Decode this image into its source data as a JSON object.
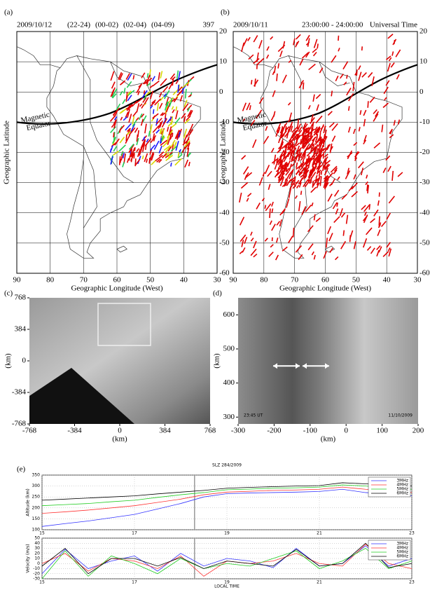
{
  "chart_data": [
    {
      "type": "map",
      "label": "(a)",
      "date": "2009/10/12",
      "legend": [
        {
          "name": "(22-24)",
          "color": "#d8d800"
        },
        {
          "name": "(00-02)",
          "color": "#1a1aff"
        },
        {
          "name": "(02-04)",
          "color": "#22cc55"
        },
        {
          "name": "(04-09)",
          "color": "#e00000"
        }
      ],
      "count": 397,
      "xlim": [
        90,
        30
      ],
      "ylim": [
        -60,
        20
      ],
      "xticks": [
        90,
        80,
        70,
        60,
        50,
        40,
        30
      ],
      "yticks": [
        20,
        10,
        0,
        -10,
        -20,
        -30,
        -40,
        -50,
        -60
      ],
      "xlabel": "Geographic Longitude (West)",
      "ylabel": "Geographic Latitude",
      "annotation": [
        "Magnetic",
        "Equator"
      ],
      "grid": true
    },
    {
      "type": "map",
      "label": "(b)",
      "date": "2009/10/11",
      "time": "23:00:00 - 24:00:00",
      "time_system": "Universal Time",
      "legend": [
        {
          "name": null,
          "color": "#e00000"
        }
      ],
      "xlim": [
        90,
        30
      ],
      "ylim": [
        -60,
        20
      ],
      "xticks": [
        90,
        80,
        70,
        60,
        50,
        40,
        30
      ],
      "yticks": [
        20,
        10,
        0,
        -10,
        -20,
        -30,
        -40,
        -50,
        -60
      ],
      "xlabel": "Geographic Longitude (West)",
      "ylabel": "Geographic Latitude",
      "annotation": [
        "Magnetic",
        "Equator"
      ],
      "grid": true
    },
    {
      "type": "image",
      "label": "(c)",
      "xlim": [
        -768,
        768
      ],
      "ylim": [
        -768,
        768
      ],
      "xticks": [
        -768,
        -384,
        0,
        384,
        768
      ],
      "yticks": [
        768,
        384,
        0,
        -384,
        -768
      ],
      "xlabel": "(km)",
      "ylabel": "(km)"
    },
    {
      "type": "image",
      "label": "(d)",
      "xlim": [
        -300,
        200
      ],
      "ylim": [
        280,
        650
      ],
      "xticks": [
        -300,
        -200,
        -100,
        0,
        100,
        200
      ],
      "yticks": [
        600,
        500,
        400,
        300
      ],
      "xlabel": "(km)",
      "ylabel": "(km)",
      "timestamp": "23:45 UT",
      "date": "11/10/2009"
    },
    {
      "type": "line",
      "label": "(e)",
      "title": "SLZ 284/2009",
      "ylabel": "Altitude (km)",
      "x": [
        15,
        15.5,
        16,
        16.5,
        17,
        17.5,
        18,
        18.5,
        19,
        19.5,
        20,
        20.5,
        21,
        21.5,
        22,
        22.5,
        23
      ],
      "series": [
        {
          "name": "3MHz",
          "color": "#3333ff",
          "values": [
            115,
            128,
            140,
            155,
            170,
            195,
            220,
            250,
            265,
            268,
            270,
            272,
            275,
            285,
            270,
            262,
            255
          ]
        },
        {
          "name": "4MHz",
          "color": "#ff3333",
          "values": [
            175,
            182,
            190,
            200,
            210,
            225,
            240,
            260,
            272,
            276,
            280,
            282,
            285,
            295,
            285,
            278,
            270
          ]
        },
        {
          "name": "5MHz",
          "color": "#22cc22",
          "values": [
            210,
            215,
            220,
            228,
            235,
            248,
            260,
            270,
            283,
            286,
            290,
            292,
            295,
            305,
            300,
            292,
            285
          ]
        },
        {
          "name": "6MHz",
          "color": "#000000",
          "values": [
            235,
            240,
            245,
            250,
            255,
            264,
            272,
            280,
            290,
            294,
            297,
            300,
            302,
            315,
            310,
            305,
            300
          ]
        }
      ],
      "xlim": [
        15,
        23
      ],
      "ylim": [
        100,
        350
      ],
      "xticks": [
        15,
        17,
        19,
        21,
        23
      ],
      "yticks": [
        100,
        150,
        200,
        250,
        300,
        350
      ],
      "grid": true,
      "vline": 18.3
    },
    {
      "type": "line",
      "ylabel": "Velocity (m/s)",
      "xlabel": "LOCAL TIME",
      "x": [
        15,
        15.5,
        16,
        16.5,
        17,
        17.5,
        18,
        18.5,
        19,
        19.5,
        20,
        20.5,
        21,
        21.5,
        22,
        22.5,
        23
      ],
      "series": [
        {
          "name": "3MHz",
          "color": "#3333ff",
          "values": [
            -20,
            28,
            -10,
            5,
            15,
            -15,
            20,
            -5,
            10,
            5,
            -8,
            30,
            -5,
            0,
            35,
            -5,
            10
          ]
        },
        {
          "name": "4MHz",
          "color": "#ff3333",
          "values": [
            0,
            20,
            -15,
            10,
            5,
            -10,
            15,
            -25,
            5,
            0,
            5,
            20,
            0,
            -5,
            38,
            0,
            -10
          ]
        },
        {
          "name": "5MHz",
          "color": "#22cc22",
          "values": [
            -30,
            25,
            -25,
            15,
            0,
            -20,
            10,
            -10,
            0,
            -5,
            10,
            25,
            -10,
            5,
            30,
            -10,
            5
          ]
        },
        {
          "name": "6MHz",
          "color": "#000000",
          "values": [
            -5,
            30,
            -20,
            10,
            10,
            -5,
            12,
            -10,
            5,
            0,
            -5,
            28,
            -5,
            0,
            40,
            -8,
            0
          ]
        }
      ],
      "xlim": [
        15,
        23
      ],
      "ylim": [
        -30,
        50
      ],
      "xticks": [
        15,
        17,
        19,
        21,
        23
      ],
      "yticks": [
        -30,
        -20,
        -10,
        0,
        10,
        20,
        30,
        40,
        50
      ],
      "grid": true,
      "vline": 18.3
    }
  ]
}
